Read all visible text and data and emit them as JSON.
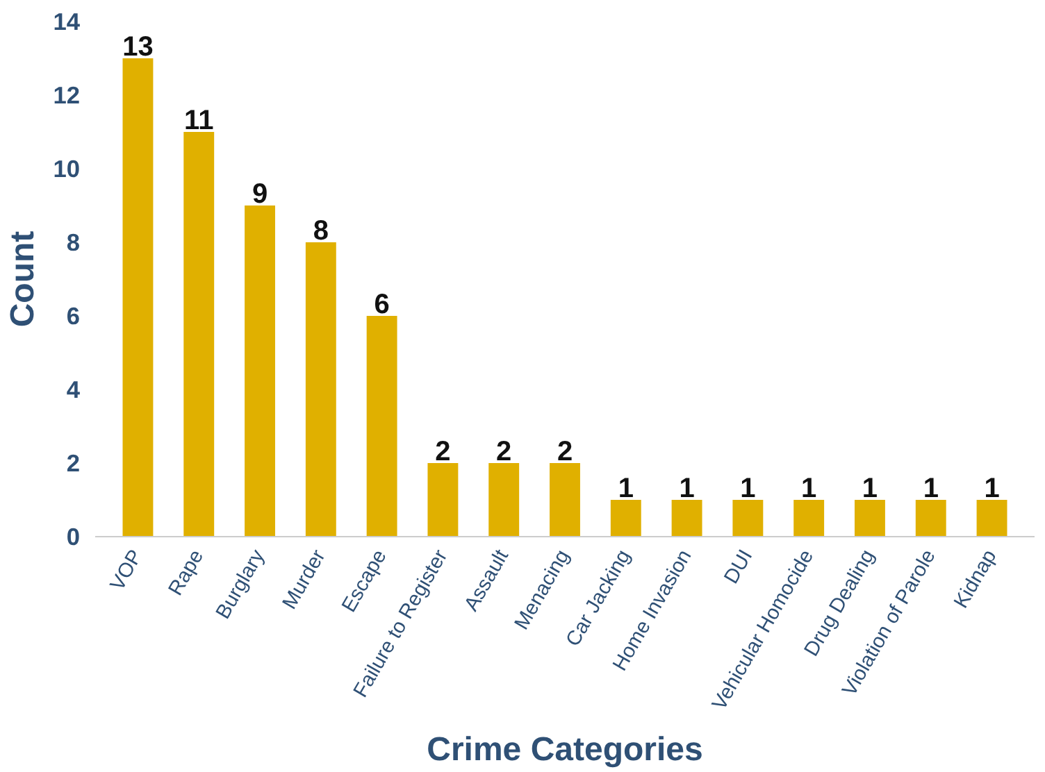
{
  "chart_data": {
    "type": "bar",
    "xlabel": "Crime Categories",
    "ylabel": "Count",
    "categories": [
      "VOP",
      "Rape",
      "Burglary",
      "Murder",
      "Escape",
      "Failure to Register",
      "Assault",
      "Menacing",
      "Car Jacking",
      "Home Invasion",
      "DUI",
      "Vehicular Homocide",
      "Drug Dealing",
      "Violation of Parole",
      "Kidnap"
    ],
    "values": [
      13,
      11,
      9,
      8,
      6,
      2,
      2,
      2,
      1,
      1,
      1,
      1,
      1,
      1,
      1
    ],
    "color": "#e0b000",
    "ylim": [
      0,
      14
    ],
    "yticks": [
      0,
      2,
      4,
      6,
      8,
      10,
      12,
      14
    ],
    "grid": false,
    "data_labels": true
  }
}
